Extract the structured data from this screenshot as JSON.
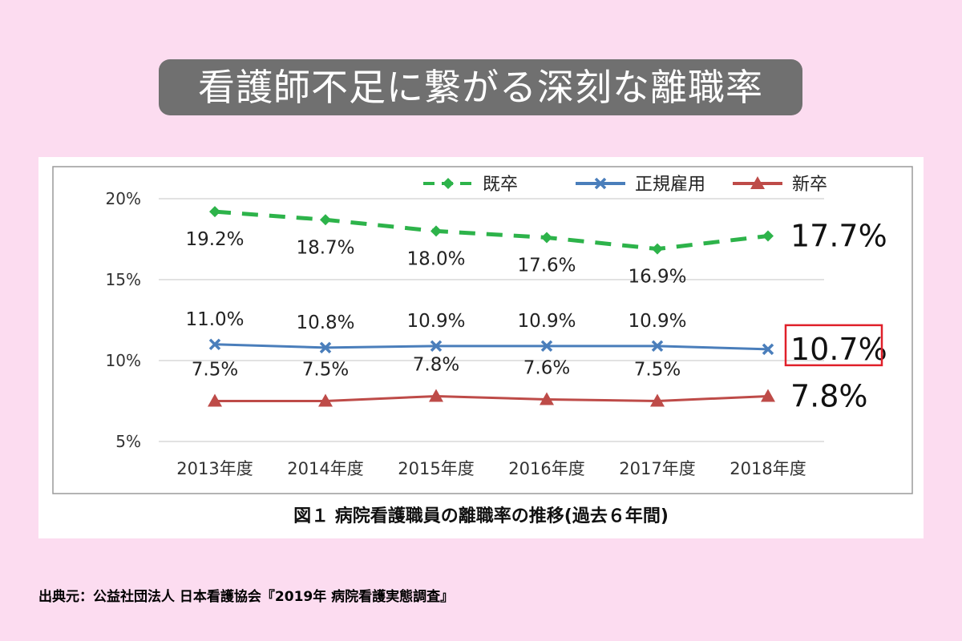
{
  "header": {
    "title": "看護師不足に繋がる深刻な離職率"
  },
  "source": "出典元：公益社団法人 日本看護協会『2019年 病院看護実態調査』",
  "chart_data": {
    "type": "line",
    "title": "図１ 病院看護職員の離職率の推移(過去６年間)",
    "xlabel": "",
    "ylabel": "",
    "categories": [
      "2013年度",
      "2014年度",
      "2015年度",
      "2016年度",
      "2017年度",
      "2018年度"
    ],
    "y_ticks": [
      "20%",
      "15%",
      "10%",
      "5%"
    ],
    "ylim": [
      5,
      20
    ],
    "grid": true,
    "legend": "top",
    "series": [
      {
        "name": "既卒",
        "color": "#2db34a",
        "style": "dashed",
        "marker": "diamond",
        "values": [
          19.2,
          18.7,
          18.0,
          17.6,
          16.9,
          17.7
        ],
        "labels": [
          "19.2%",
          "18.7%",
          "18.0%",
          "17.6%",
          "16.9%",
          "17.7%"
        ]
      },
      {
        "name": "正規雇用",
        "color": "#4a7ebb",
        "style": "solid",
        "marker": "x",
        "values": [
          11.0,
          10.8,
          10.9,
          10.9,
          10.9,
          10.7
        ],
        "labels": [
          "11.0%",
          "10.8%",
          "10.9%",
          "10.9%",
          "10.9%",
          "10.7%"
        ]
      },
      {
        "name": "新卒",
        "color": "#be4b48",
        "style": "solid",
        "marker": "triangle",
        "values": [
          7.5,
          7.5,
          7.8,
          7.6,
          7.5,
          7.8
        ],
        "labels": [
          "7.5%",
          "7.5%",
          "7.8%",
          "7.6%",
          "7.5%",
          "7.8%"
        ]
      }
    ],
    "highlight_color": "#e0202a"
  }
}
